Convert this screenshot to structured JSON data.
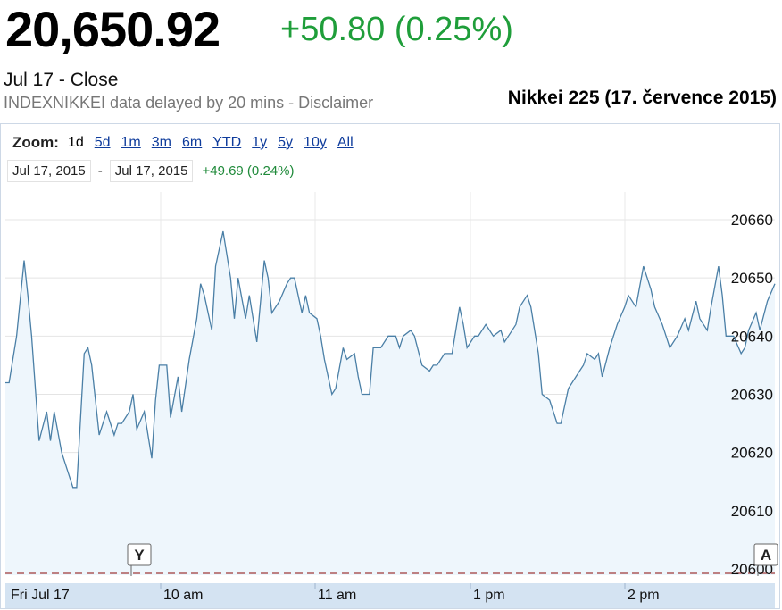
{
  "header": {
    "price": "20,650.92",
    "change": "+50.80 (0.25%)",
    "close_label": "Jul 17 - Close",
    "delayed_note": "INDEXNIKKEI data delayed by 20 mins - Disclaimer",
    "subtitle": "Nikkei 225 (17. července 2015)"
  },
  "controls": {
    "zoom_label": "Zoom:",
    "zoom_options": [
      "1d",
      "5d",
      "1m",
      "3m",
      "6m",
      "YTD",
      "1y",
      "5y",
      "10y",
      "All"
    ],
    "active_zoom": "1d",
    "date_from": "Jul 17, 2015",
    "date_sep": "-",
    "date_to": "Jul 17, 2015",
    "range_change": "+49.69 (0.24%)"
  },
  "colors": {
    "up": "#1f9e3a",
    "line": "#4a7fa6",
    "fill": "#eef6fc",
    "axis_bar": "#d4e3f2",
    "link": "#0f3c9c"
  },
  "chart_data": {
    "type": "area",
    "ylim": [
      20600,
      20660
    ],
    "y_ticks": [
      "20660",
      "20650",
      "20640",
      "20630",
      "20620",
      "20610",
      "20600"
    ],
    "x_tick_labels": [
      "Fri Jul 17",
      "10 am",
      "11 am",
      "1 pm",
      "2 pm"
    ],
    "markers": [
      "Y",
      "A"
    ],
    "previous_close": 20600,
    "x_unit": "minutes after 9:00",
    "x": [
      0,
      1,
      3,
      5,
      6,
      7,
      9,
      11,
      12,
      13,
      15,
      16,
      18,
      19,
      21,
      22,
      23,
      25,
      27,
      29,
      30,
      31,
      33,
      34,
      35,
      37,
      39,
      40,
      41,
      43,
      44,
      46,
      47,
      49,
      51,
      52,
      53,
      55,
      56,
      58,
      60,
      61,
      62,
      64,
      65,
      67,
      69,
      70,
      71,
      73,
      75,
      76,
      77,
      79,
      80,
      81,
      83,
      84,
      85,
      87,
      88,
      90,
      91,
      93,
      94,
      95,
      97,
      98,
      100,
      102,
      104,
      105,
      106,
      108,
      109,
      111,
      113,
      114,
      115,
      117,
      119,
      121,
      122,
      123,
      125,
      126,
      128,
      130,
      132,
      133,
      134,
      136,
      137,
      139,
      140,
      142,
      143,
      145,
      147,
      148,
      150,
      151,
      153,
      154,
      155,
      157,
      158,
      159,
      161,
      162,
      163,
      165,
      166,
      168,
      170,
      172,
      173,
      175,
      176,
      177,
      179,
      181,
      182,
      184,
      185,
      187,
      188,
      190,
      191,
      192,
      194,
      196,
      197,
      198,
      200,
      201,
      203,
      205
    ],
    "y": [
      20632,
      20632,
      20640,
      20653,
      20647,
      20640,
      20622,
      20627,
      20622,
      20627,
      20620,
      20618,
      20614,
      20614,
      20637,
      20638,
      20635,
      20623,
      20627,
      20623,
      20625,
      20625,
      20627,
      20630,
      20624,
      20627,
      20619,
      20629,
      20635,
      20635,
      20626,
      20633,
      20627,
      20636,
      20643,
      20649,
      20647,
      20641,
      20652,
      20658,
      20650,
      20643,
      20650,
      20643,
      20647,
      20639,
      20653,
      20650,
      20644,
      20646,
      20649,
      20650,
      20650,
      20644,
      20647,
      20644,
      20643,
      20640,
      20636,
      20630,
      20631,
      20638,
      20636,
      20637,
      20633,
      20630,
      20630,
      20638,
      20638,
      20640,
      20640,
      20638,
      20640,
      20641,
      20640,
      20635,
      20634,
      20635,
      20635,
      20637,
      20637,
      20645,
      20642,
      20638,
      20640,
      20640,
      20642,
      20640,
      20641,
      20639,
      20640,
      20642,
      20645,
      20647,
      20645,
      20637,
      20630,
      20629,
      20625,
      20625,
      20631,
      20632,
      20634,
      20635,
      20637,
      20636,
      20637,
      20633,
      20638,
      20640,
      20642,
      20645,
      20647,
      20645,
      20652,
      20648,
      20645,
      20642,
      20640,
      20638,
      20640,
      20643,
      20641,
      20646,
      20643,
      20641,
      20645,
      20652,
      20647,
      20640,
      20640,
      20637,
      20638,
      20641,
      20644,
      20641,
      20646,
      20649
    ]
  }
}
